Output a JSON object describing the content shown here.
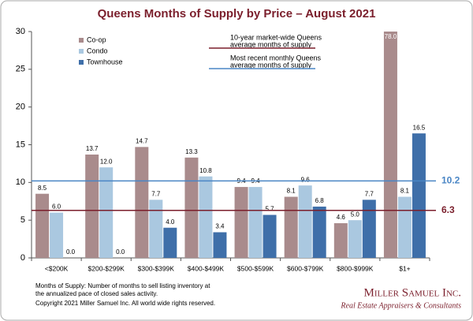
{
  "chart_data": {
    "type": "bar",
    "title": "Queens Months of Supply by Price – August 2021",
    "categories": [
      "<$200K",
      "$200-$299K",
      "$300-$399K",
      "$400-$499K",
      "$500-$599K",
      "$600-$799K",
      "$800-$999K",
      "$1+"
    ],
    "series": [
      {
        "name": "Co-op",
        "color": "#a98b8c",
        "values": [
          8.5,
          13.7,
          14.7,
          13.3,
          9.4,
          8.1,
          4.6,
          78.0
        ],
        "value_labels": [
          "8.5",
          "13.7",
          "14.7",
          "13.3",
          "9.4",
          "8.1",
          "4.6",
          "78.0"
        ]
      },
      {
        "name": "Condo",
        "color": "#aac8e0",
        "values": [
          6.0,
          12.0,
          7.7,
          10.8,
          9.4,
          9.6,
          5.0,
          8.1
        ],
        "value_labels": [
          "6.0",
          "12.0",
          "7.7",
          "10.8",
          "9.4",
          "9.6",
          "5.0",
          "8.1"
        ]
      },
      {
        "name": "Townhouse",
        "color": "#3f6fa9",
        "values": [
          0.0,
          0.0,
          4.0,
          3.4,
          5.7,
          6.8,
          7.7,
          16.5
        ],
        "value_labels": [
          "0.0",
          "0.0",
          "4.0",
          "3.4",
          "5.7",
          "6.8",
          "7.7",
          "16.5"
        ]
      }
    ],
    "reference_lines": [
      {
        "name": [
          "10-year market-wide Queens",
          "average months of supply"
        ],
        "color": "#7b1f2c",
        "value": 6.3
      },
      {
        "name": [
          "Most recent monthly Queens",
          "average months of supply"
        ],
        "color": "#4a86c5",
        "value": 10.2
      }
    ],
    "ylim": [
      0,
      30
    ],
    "yticks": [
      0,
      5,
      10,
      15,
      20,
      25,
      30
    ],
    "grid": false,
    "legend": "top-left",
    "footnote": [
      "Months of Supply: Number of months to sell listing inventory at",
      "the annualized pace of closed sales activity."
    ],
    "copyright": "Copyright 2021 Miller Samuel Inc.  All world wide rights reserved.",
    "logo": {
      "name": "Miller Samuel Inc.",
      "tagline": "Real Estate Appraisers & Consultants"
    }
  }
}
